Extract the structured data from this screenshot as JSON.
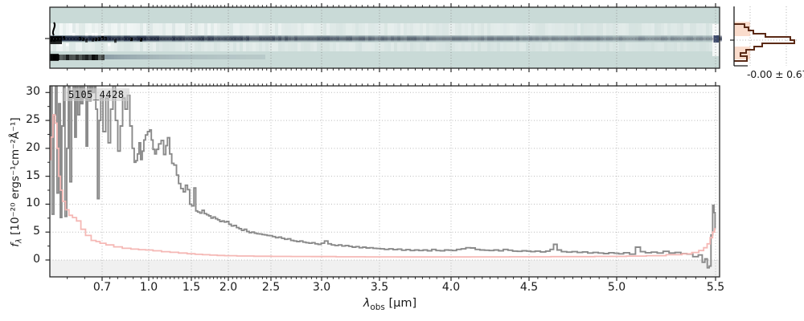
{
  "figure": {
    "kind": "spectrum-viewer",
    "background": "#ffffff",
    "text_color": "#1a1a1a"
  },
  "panel_2d": {
    "description": "drizzled 2D spectrum image",
    "bg_color": "#c9dad7",
    "white_band_color": "#ffffff",
    "trace_color": "#16203c",
    "trace_core_color": "#0a1128",
    "knot_color": "#000000",
    "lower_band_color": "#31435c",
    "grid_color": "#8f8f8f"
  },
  "residual_hist": {
    "stats_label": "-0.00 ± 0.67",
    "outline_color": "#5b2a16",
    "fill_color": "#f29a6e",
    "grid_color": "#b0b0b0",
    "outline_bars": [
      [
        0.297,
        0.351,
        0.153
      ],
      [
        0.351,
        0.405,
        0.212
      ],
      [
        0.405,
        0.459,
        0.282
      ],
      [
        0.459,
        0.514,
        0.459
      ],
      [
        0.514,
        0.568,
        0.824
      ],
      [
        0.568,
        0.622,
        0.882
      ],
      [
        0.622,
        0.676,
        0.412
      ],
      [
        0.676,
        0.73,
        0.294
      ],
      [
        0.73,
        0.784,
        0.176
      ],
      [
        0.784,
        0.838,
        0.094
      ],
      [
        0.838,
        0.919,
        0.188
      ]
    ],
    "fill_bars": [
      [
        0.26,
        0.5,
        0.235
      ],
      [
        0.676,
        0.892,
        0.235
      ]
    ]
  },
  "chart_data": {
    "type": "line",
    "annotation": "5105_4428",
    "xlabel": {
      "sym": "λ",
      "sub": "obs",
      "unit": " [μm]"
    },
    "ylabel": {
      "sym": "f",
      "sub": "λ",
      "unit": " [10⁻²⁰ ergs⁻¹cm⁻²Å⁻¹]"
    },
    "xlim": [
      0.55,
      5.52
    ],
    "ylim": [
      -3.02,
      31.19
    ],
    "x_ticks": [
      0.7,
      1.0,
      1.5,
      2.0,
      2.5,
      3.0,
      3.5,
      4.0,
      4.5,
      5.0,
      5.5
    ],
    "x_tick_labels": [
      "0.7",
      "1.0",
      "1.5",
      "2.0",
      "2.5",
      "3.0",
      "3.5",
      "4.0",
      "4.5",
      "5.0",
      "5.5"
    ],
    "minor_tick_step": 0.05,
    "y_ticks": [
      0,
      5,
      10,
      15,
      20,
      25,
      30
    ],
    "y_tick_labels": [
      "0",
      "5",
      "10",
      "15",
      "20",
      "25",
      "30"
    ],
    "grid": true,
    "grid_color": "#b3b3b3",
    "below_zero_band_alpha": 0.06,
    "wavelength_dispersion_control_points": [
      [
        0.55,
        62
      ],
      [
        0.7,
        127
      ],
      [
        1.0,
        185
      ],
      [
        1.5,
        238
      ],
      [
        2.0,
        284
      ],
      [
        2.5,
        337
      ],
      [
        3.0,
        400
      ],
      [
        3.5,
        472
      ],
      [
        4.0,
        561
      ],
      [
        4.5,
        658
      ],
      [
        5.0,
        767
      ],
      [
        5.5,
        890
      ],
      [
        5.52,
        895
      ]
    ],
    "series": [
      {
        "name": "flux",
        "color": "#8a8a8a",
        "linewidth": 1.9,
        "x": [
          0.55,
          0.554,
          0.559,
          0.564,
          0.568,
          0.573,
          0.578,
          0.582,
          0.587,
          0.591,
          0.596,
          0.601,
          0.605,
          0.61,
          0.615,
          0.619,
          0.624,
          0.628,
          0.633,
          0.638,
          0.642,
          0.647,
          0.652,
          0.656,
          0.661,
          0.666,
          0.67,
          0.675,
          0.68,
          0.684,
          0.689,
          0.694,
          0.698,
          0.716,
          0.731,
          0.747,
          0.762,
          0.778,
          0.793,
          0.809,
          0.824,
          0.84,
          0.855,
          0.871,
          0.886,
          0.901,
          0.912,
          0.922,
          0.932,
          0.943,
          0.953,
          0.963,
          0.974,
          0.984,
          1.0,
          1.02,
          1.04,
          1.06,
          1.08,
          1.1,
          1.13,
          1.16,
          1.19,
          1.21,
          1.23,
          1.26,
          1.28,
          1.31,
          1.34,
          1.36,
          1.39,
          1.42,
          1.44,
          1.47,
          1.49,
          1.52,
          1.55,
          1.57,
          1.6,
          1.63,
          1.66,
          1.69,
          1.72,
          1.75,
          1.78,
          1.81,
          1.84,
          1.87,
          1.9,
          1.93,
          1.96,
          1.99,
          2.02,
          2.05,
          2.08,
          2.11,
          2.14,
          2.17,
          2.2,
          2.23,
          2.26,
          2.29,
          2.32,
          2.35,
          2.38,
          2.41,
          2.44,
          2.47,
          2.5,
          2.53,
          2.56,
          2.59,
          2.62,
          2.65,
          2.68,
          2.71,
          2.74,
          2.77,
          2.8,
          2.83,
          2.86,
          2.89,
          2.92,
          2.95,
          2.98,
          3.01,
          3.04,
          3.07,
          3.1,
          3.13,
          3.16,
          3.19,
          3.22,
          3.25,
          3.28,
          3.31,
          3.34,
          3.37,
          3.4,
          3.43,
          3.46,
          3.49,
          3.52,
          3.55,
          3.58,
          3.61,
          3.64,
          3.67,
          3.7,
          3.73,
          3.76,
          3.79,
          3.82,
          3.85,
          3.88,
          3.91,
          3.94,
          3.97,
          4.0,
          4.02,
          4.05,
          4.08,
          4.11,
          4.14,
          4.17,
          4.2,
          4.23,
          4.26,
          4.29,
          4.32,
          4.35,
          4.38,
          4.41,
          4.44,
          4.47,
          4.5,
          4.52,
          4.55,
          4.58,
          4.61,
          4.63,
          4.65,
          4.67,
          4.7,
          4.73,
          4.76,
          4.79,
          4.82,
          4.85,
          4.88,
          4.91,
          4.94,
          4.97,
          5.0,
          5.02,
          5.05,
          5.08,
          5.11,
          5.13,
          5.16,
          5.19,
          5.22,
          5.25,
          5.28,
          5.31,
          5.34,
          5.37,
          5.4,
          5.425,
          5.44,
          5.452,
          5.464,
          5.472,
          5.482,
          5.489,
          5.495,
          5.5
        ],
        "y": [
          21,
          31.4,
          8.2,
          26,
          31.4,
          12,
          28,
          7.6,
          24,
          31.4,
          7.8,
          20,
          31.4,
          14,
          29,
          31.4,
          22,
          31.4,
          26,
          31.4,
          28,
          31.4,
          29,
          20.4,
          31.4,
          28.5,
          31.4,
          30,
          31.4,
          27,
          11,
          25,
          29,
          23,
          29,
          21,
          27,
          31.2,
          25,
          19.5,
          24,
          29,
          27,
          29.5,
          24,
          20,
          17.5,
          17.8,
          19,
          21,
          18,
          19.5,
          21.5,
          22.4,
          23,
          23.3,
          21.5,
          19.8,
          19,
          19.8,
          20.8,
          21.4,
          18.9,
          20.5,
          21.9,
          19,
          17.3,
          17,
          15.2,
          13.7,
          12.8,
          12.2,
          13.4,
          12.6,
          10,
          9.7,
          12.9,
          8.8,
          8.6,
          8.4,
          8.9,
          8.3,
          8.1,
          7.9,
          7.5,
          7.7,
          7.4,
          7.2,
          6.9,
          7,
          6.8,
          6.9,
          6.4,
          6.1,
          6.2,
          5.8,
          5.6,
          5.3,
          5.5,
          5.1,
          4.9,
          5,
          4.8,
          4.7,
          4.65,
          4.55,
          4.5,
          4.4,
          4.35,
          4.2,
          4,
          4.1,
          3.9,
          3.7,
          3.8,
          3.5,
          3.4,
          3.3,
          3.4,
          3.2,
          3.1,
          3,
          3.1,
          2.9,
          2.8,
          3,
          3.4,
          2.9,
          2.7,
          2.6,
          2.7,
          2.5,
          2.6,
          2.45,
          2.3,
          2.4,
          2.2,
          2.3,
          2.15,
          2.2,
          2.1,
          2.05,
          2,
          1.9,
          2,
          1.85,
          1.95,
          1.75,
          1.85,
          1.7,
          1.8,
          1.7,
          1.8,
          1.65,
          1.9,
          1.7,
          1.65,
          1.8,
          1.75,
          1.7,
          1.9,
          2,
          2.2,
          2.15,
          1.9,
          1.8,
          1.75,
          1.7,
          1.8,
          1.65,
          1.9,
          1.75,
          1.6,
          1.55,
          1.65,
          1.6,
          1.5,
          1.6,
          1.45,
          1.6,
          1.9,
          2.8,
          1.8,
          1.5,
          1.4,
          1.5,
          1.35,
          1.45,
          1.25,
          1.35,
          1.25,
          1.15,
          1.3,
          1.2,
          1.1,
          1.3,
          1.05,
          2.3,
          1.5,
          1.3,
          1.4,
          1.25,
          1.55,
          1.25,
          1.35,
          1.15,
          1.05,
          0.6,
          0.9,
          -0.4,
          0.2,
          -1.4,
          -1.1,
          4.5,
          9.8,
          8.5,
          5.6
        ]
      },
      {
        "name": "uncertainty",
        "color": "#f5b8b5",
        "linewidth": 1.8,
        "x": [
          0.55,
          0.556,
          0.562,
          0.568,
          0.573,
          0.578,
          0.583,
          0.59,
          0.6,
          0.61,
          0.62,
          0.633,
          0.645,
          0.66,
          0.677,
          0.688,
          0.7,
          0.75,
          0.8,
          0.86,
          0.91,
          0.96,
          1.0,
          1.1,
          1.2,
          1.3,
          1.4,
          1.5,
          1.6,
          1.7,
          1.8,
          1.9,
          2.0,
          2.2,
          2.4,
          2.6,
          2.8,
          3.0,
          3.25,
          3.5,
          3.75,
          4.0,
          4.25,
          4.5,
          4.75,
          5.0,
          5.1,
          5.2,
          5.3,
          5.36,
          5.4,
          5.43,
          5.45,
          5.465,
          5.48,
          5.49,
          5.5
        ],
        "y": [
          18,
          22,
          26,
          24.5,
          20,
          15,
          12.5,
          10.5,
          9,
          8,
          7.6,
          7,
          5.5,
          4.4,
          3.5,
          3.3,
          3,
          2.7,
          2.35,
          2.1,
          1.95,
          1.85,
          1.8,
          1.65,
          1.5,
          1.38,
          1.25,
          1.12,
          1.02,
          0.95,
          0.88,
          0.82,
          0.78,
          0.72,
          0.68,
          0.65,
          0.63,
          0.61,
          0.58,
          0.56,
          0.55,
          0.55,
          0.56,
          0.57,
          0.6,
          0.64,
          0.7,
          0.78,
          0.95,
          1.1,
          1.35,
          1.7,
          2.2,
          2.9,
          4,
          5,
          5.6
        ]
      }
    ]
  }
}
